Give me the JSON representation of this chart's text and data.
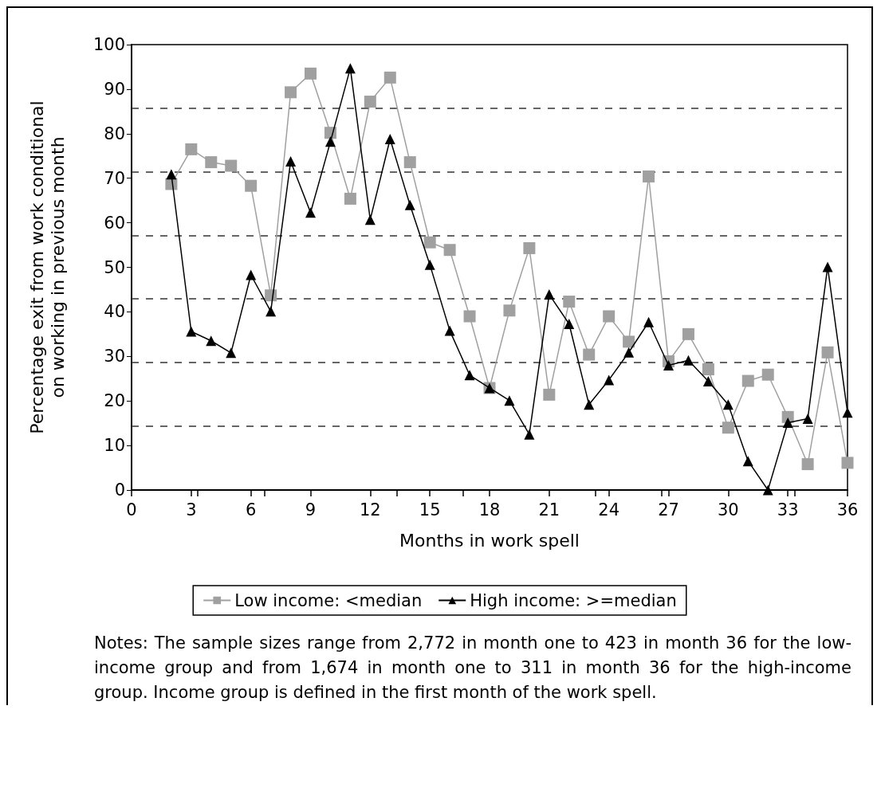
{
  "chart_data": {
    "type": "line",
    "xlabel": "Months in work spell",
    "ylabel": "Percentage exit from work conditional\non working in previous month",
    "xlim": [
      0,
      36
    ],
    "xticks": [
      0,
      3,
      6,
      9,
      12,
      15,
      18,
      21,
      24,
      27,
      30,
      33,
      36
    ],
    "ylim": [
      0,
      100
    ],
    "yticks": [
      0,
      10,
      20,
      30,
      40,
      50,
      60,
      70,
      80,
      90,
      100
    ],
    "grid": false,
    "legend": "bottom",
    "x": [
      2,
      3,
      4,
      5,
      6,
      7,
      8,
      9,
      10,
      11,
      12,
      13,
      14,
      15,
      16,
      17,
      18,
      19,
      20,
      21,
      22,
      23,
      24,
      25,
      26,
      27,
      28,
      29,
      30,
      31,
      32,
      33,
      34,
      35,
      36
    ],
    "series": [
      {
        "name": "Low income: <median",
        "color": "#a0a0a0",
        "marker": "square",
        "values": [
          68.7,
          76.5,
          73.6,
          72.8,
          68.3,
          43.7,
          89.3,
          93.5,
          80.2,
          65.4,
          87.2,
          92.6,
          73.6,
          55.6,
          53.9,
          39.0,
          22.9,
          40.3,
          54.3,
          21.4,
          42.3,
          30.4,
          39.0,
          33.3,
          70.4,
          28.9,
          35.0,
          27.1,
          14.0,
          24.5,
          25.9,
          16.4,
          5.8,
          30.9,
          6.1
        ]
      },
      {
        "name": "High income: >=median",
        "color": "#000000",
        "marker": "triangle",
        "values": [
          70.9,
          35.6,
          33.5,
          30.8,
          48.3,
          40.1,
          73.8,
          62.3,
          78.2,
          94.7,
          60.7,
          78.8,
          64.0,
          50.6,
          35.8,
          25.8,
          22.9,
          20.1,
          12.5,
          43.9,
          37.3,
          19.2,
          24.7,
          30.9,
          37.7,
          28.0,
          29.1,
          24.4,
          19.2,
          6.5,
          0,
          15.1,
          16.0,
          50.1,
          17.4
        ]
      }
    ],
    "ref_lines": [
      {
        "axis": "y",
        "value": 14.3,
        "line_style": "dashed",
        "color": "#333333"
      },
      {
        "axis": "y",
        "value": 28.6,
        "line_style": "dashed",
        "color": "#333333"
      },
      {
        "axis": "y",
        "value": 42.9,
        "line_style": "dashed",
        "color": "#333333"
      },
      {
        "axis": "y",
        "value": 57.1,
        "line_style": "dashed",
        "color": "#333333"
      },
      {
        "axis": "y",
        "value": 71.4,
        "line_style": "dashed",
        "color": "#333333"
      },
      {
        "axis": "y",
        "value": 85.7,
        "line_style": "dashed",
        "color": "#333333"
      }
    ],
    "annotations": [
      "Notes: The sample sizes range from 2,772 in month one to 423 in month 36 for the low-income group and from 1,674 in month one to 311 in month 36 for the high-income group. Income group is defined in the first month of the work spell."
    ]
  }
}
